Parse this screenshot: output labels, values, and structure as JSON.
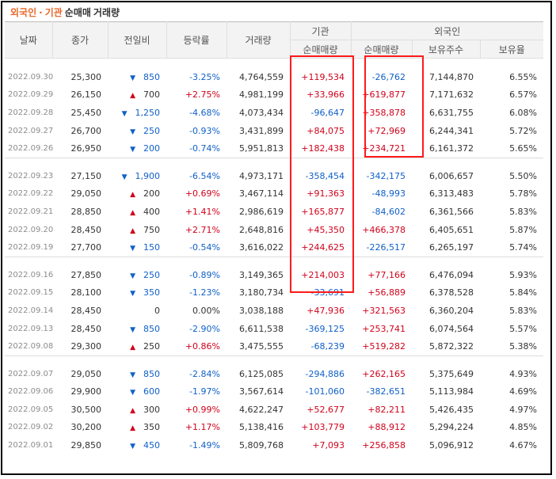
{
  "title": {
    "part1": "외국인",
    "sep": "·",
    "part2": "기관",
    "part3": "순매매",
    "part4": "거래량"
  },
  "headers": {
    "date": "날짜",
    "close": "종가",
    "change": "전일비",
    "rate": "등락률",
    "volume": "거래량",
    "institution_group": "기관",
    "institution_net": "순매매량",
    "foreign_group": "외국인",
    "foreign_net": "순매매량",
    "foreign_shares": "보유주수",
    "foreign_ratio": "보유율"
  },
  "colors": {
    "up": "#d0021b",
    "down": "#1060c8",
    "highlight_box": "#ff1a1a",
    "accent": "#e8692a"
  },
  "icons": {
    "up": "triangle-up-icon",
    "down": "triangle-down-icon"
  },
  "groups": [
    {
      "rows": [
        {
          "date": "2022.09.30",
          "close": "25,300",
          "dir": "down",
          "change": "850",
          "rate": "-3.25%",
          "volume": "4,764,559",
          "inst": "+119,534",
          "foreign": "-26,762",
          "shares": "7,144,870",
          "ratio": "6.55%"
        },
        {
          "date": "2022.09.29",
          "close": "26,150",
          "dir": "up",
          "change": "700",
          "rate": "+2.75%",
          "volume": "4,981,199",
          "inst": "+33,966",
          "foreign": "+619,877",
          "shares": "7,171,632",
          "ratio": "6.57%"
        },
        {
          "date": "2022.09.28",
          "close": "25,450",
          "dir": "down",
          "change": "1,250",
          "rate": "-4.68%",
          "volume": "4,073,434",
          "inst": "-96,647",
          "foreign": "+358,878",
          "shares": "6,631,755",
          "ratio": "6.08%"
        },
        {
          "date": "2022.09.27",
          "close": "26,700",
          "dir": "down",
          "change": "250",
          "rate": "-0.93%",
          "volume": "3,431,899",
          "inst": "+84,075",
          "foreign": "+72,969",
          "shares": "6,244,341",
          "ratio": "5.72%"
        },
        {
          "date": "2022.09.26",
          "close": "26,950",
          "dir": "down",
          "change": "200",
          "rate": "-0.74%",
          "volume": "5,951,813",
          "inst": "+182,438",
          "foreign": "+234,721",
          "shares": "6,161,372",
          "ratio": "5.65%"
        }
      ]
    },
    {
      "rows": [
        {
          "date": "2022.09.23",
          "close": "27,150",
          "dir": "down",
          "change": "1,900",
          "rate": "-6.54%",
          "volume": "4,973,171",
          "inst": "-358,454",
          "foreign": "-342,175",
          "shares": "6,006,657",
          "ratio": "5.50%"
        },
        {
          "date": "2022.09.22",
          "close": "29,050",
          "dir": "up",
          "change": "200",
          "rate": "+0.69%",
          "volume": "3,467,114",
          "inst": "+91,363",
          "foreign": "-48,993",
          "shares": "6,313,483",
          "ratio": "5.78%"
        },
        {
          "date": "2022.09.21",
          "close": "28,850",
          "dir": "up",
          "change": "400",
          "rate": "+1.41%",
          "volume": "2,986,619",
          "inst": "+165,877",
          "foreign": "-84,602",
          "shares": "6,361,566",
          "ratio": "5.83%"
        },
        {
          "date": "2022.09.20",
          "close": "28,450",
          "dir": "up",
          "change": "750",
          "rate": "+2.71%",
          "volume": "2,648,816",
          "inst": "+45,350",
          "foreign": "+466,378",
          "shares": "6,405,651",
          "ratio": "5.87%"
        },
        {
          "date": "2022.09.19",
          "close": "27,700",
          "dir": "down",
          "change": "150",
          "rate": "-0.54%",
          "volume": "3,616,022",
          "inst": "+244,625",
          "foreign": "-226,517",
          "shares": "6,265,197",
          "ratio": "5.74%"
        }
      ]
    },
    {
      "rows": [
        {
          "date": "2022.09.16",
          "close": "27,850",
          "dir": "down",
          "change": "250",
          "rate": "-0.89%",
          "volume": "3,149,365",
          "inst": "+214,003",
          "foreign": "+77,166",
          "shares": "6,476,094",
          "ratio": "5.93%"
        },
        {
          "date": "2022.09.15",
          "close": "28,100",
          "dir": "down",
          "change": "350",
          "rate": "-1.23%",
          "volume": "3,180,734",
          "inst": "-33,691",
          "foreign": "+56,889",
          "shares": "6,378,528",
          "ratio": "5.84%"
        },
        {
          "date": "2022.09.14",
          "close": "28,450",
          "dir": "none",
          "change": "0",
          "rate": "0.00%",
          "volume": "3,038,188",
          "inst": "+47,936",
          "foreign": "+321,563",
          "shares": "6,360,204",
          "ratio": "5.83%"
        },
        {
          "date": "2022.09.13",
          "close": "28,450",
          "dir": "down",
          "change": "850",
          "rate": "-2.90%",
          "volume": "6,611,538",
          "inst": "-369,125",
          "foreign": "+253,741",
          "shares": "6,074,564",
          "ratio": "5.57%"
        },
        {
          "date": "2022.09.08",
          "close": "29,300",
          "dir": "up",
          "change": "250",
          "rate": "+0.86%",
          "volume": "3,475,555",
          "inst": "-68,239",
          "foreign": "+519,282",
          "shares": "5,872,322",
          "ratio": "5.38%"
        }
      ]
    },
    {
      "rows": [
        {
          "date": "2022.09.07",
          "close": "29,050",
          "dir": "down",
          "change": "850",
          "rate": "-2.84%",
          "volume": "6,125,085",
          "inst": "-294,886",
          "foreign": "+262,165",
          "shares": "5,375,649",
          "ratio": "4.93%"
        },
        {
          "date": "2022.09.06",
          "close": "29,900",
          "dir": "down",
          "change": "600",
          "rate": "-1.97%",
          "volume": "3,567,614",
          "inst": "-101,060",
          "foreign": "-382,651",
          "shares": "5,113,984",
          "ratio": "4.69%"
        },
        {
          "date": "2022.09.05",
          "close": "30,500",
          "dir": "up",
          "change": "300",
          "rate": "+0.99%",
          "volume": "4,622,247",
          "inst": "+52,677",
          "foreign": "+82,211",
          "shares": "5,426,435",
          "ratio": "4.97%"
        },
        {
          "date": "2022.09.02",
          "close": "30,200",
          "dir": "up",
          "change": "350",
          "rate": "+1.17%",
          "volume": "5,138,416",
          "inst": "+103,779",
          "foreign": "+88,912",
          "shares": "5,294,224",
          "ratio": "4.85%"
        },
        {
          "date": "2022.09.01",
          "close": "29,850",
          "dir": "down",
          "change": "450",
          "rate": "-1.49%",
          "volume": "5,809,768",
          "inst": "+7,093",
          "foreign": "+256,858",
          "shares": "5,096,912",
          "ratio": "4.67%"
        }
      ]
    }
  ]
}
